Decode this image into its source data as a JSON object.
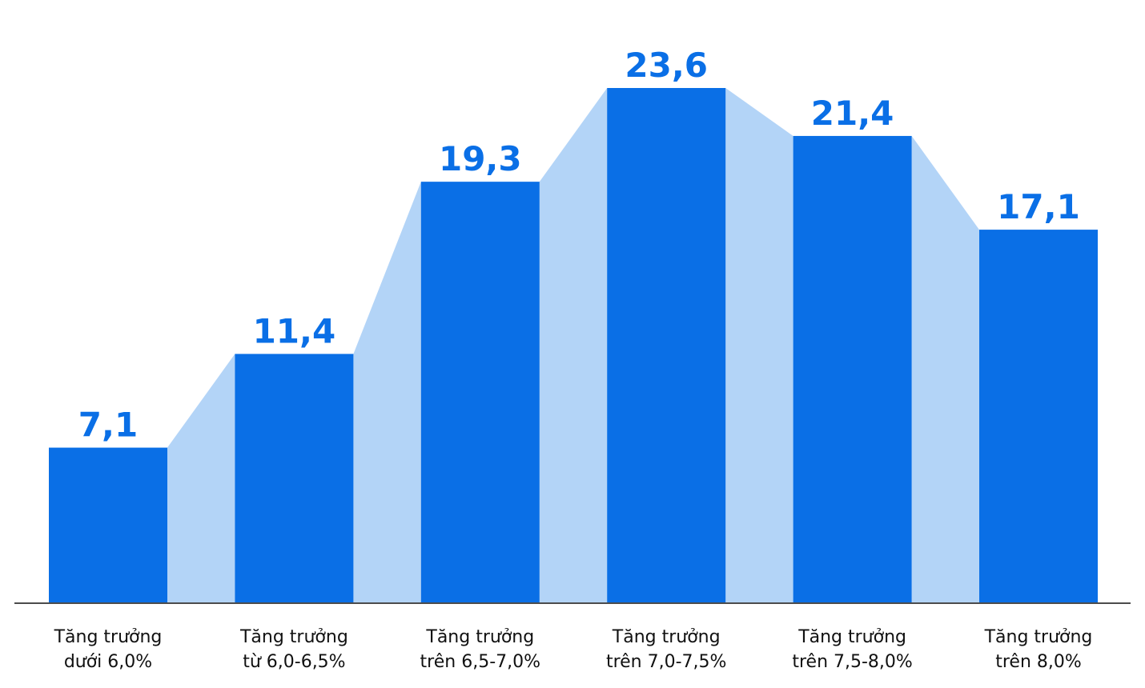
{
  "chart_data": {
    "type": "bar",
    "categories": [
      [
        "Tăng trưởng",
        "dưới 6,0%"
      ],
      [
        "Tăng trưởng",
        "từ 6,0-6,5%"
      ],
      [
        "Tăng trưởng",
        "trên 6,5-7,0%"
      ],
      [
        "Tăng trưởng",
        "trên 7,0-7,5%"
      ],
      [
        "Tăng trưởng",
        "trên 7,5-8,0%"
      ],
      [
        "Tăng trưởng",
        "trên 8,0%"
      ]
    ],
    "values": [
      7.1,
      11.4,
      19.3,
      23.6,
      21.4,
      17.1
    ],
    "value_labels": [
      "7,1",
      "11,4",
      "19,3",
      "23,6",
      "21,4",
      "17,1"
    ],
    "ylim": [
      0,
      23.6
    ],
    "grid": false,
    "legend": "none",
    "colors": {
      "bar": "#0a6fe6",
      "connector": "#b3d4f7",
      "value_text": "#0a6fe6",
      "axis": "#111111",
      "category_text": "#111111"
    }
  }
}
